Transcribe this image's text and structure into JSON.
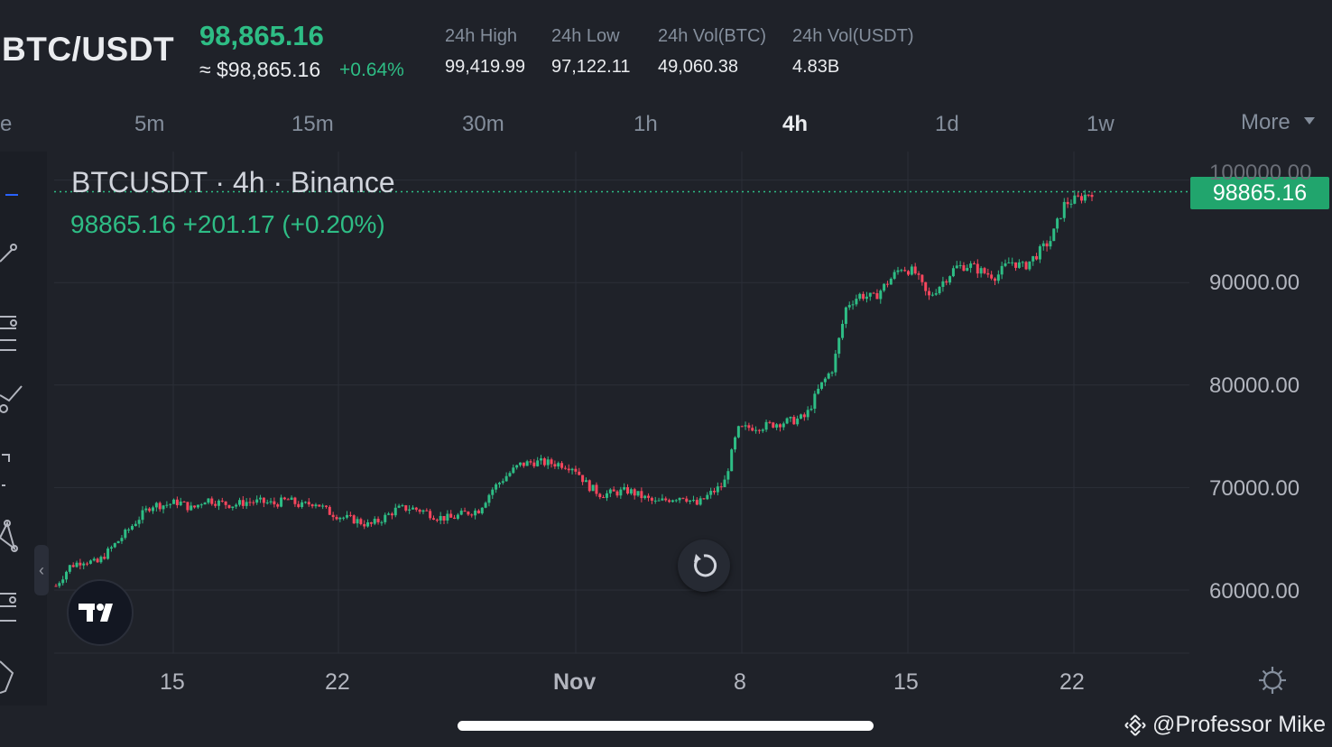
{
  "header": {
    "pair": "BTC/USDT",
    "last_price": "98,865.16",
    "approx_usd": "≈ $98,865.16",
    "change_pct": "+0.64%",
    "stats": [
      {
        "label": "24h High",
        "value": "99,419.99"
      },
      {
        "label": "24h Low",
        "value": "97,122.11"
      },
      {
        "label": "24h Vol(BTC)",
        "value": "49,060.38"
      },
      {
        "label": "24h Vol(USDT)",
        "value": "4.83B"
      }
    ]
  },
  "timeframes": {
    "items": [
      "e",
      "5m",
      "15m",
      "30m",
      "1h",
      "4h",
      "1d",
      "1w"
    ],
    "active": "4h",
    "more_label": "More"
  },
  "legend": {
    "title": "BTCUSDT · 4h · Binance",
    "values": "98865.16  +201.17 (+0.20%)"
  },
  "price_tag": "98865.16",
  "colors": {
    "up": "#2ebd85",
    "down": "#f6465d",
    "background": "#1f2229",
    "grid": "#2b2f38"
  },
  "icons": [
    "tradingview-logo-icon",
    "reset-chart-icon",
    "settings-gear-icon",
    "collapse-chevron-icon",
    "binance-logo-icon"
  ],
  "watermark": "@Professor Mike",
  "chart_data": {
    "type": "candlestick",
    "symbol": "BTCUSDT",
    "interval": "4h",
    "exchange": "Binance",
    "y_ticks": [
      "60000.00",
      "70000.00",
      "80000.00",
      "90000.00",
      "100000.00"
    ],
    "x_ticks": [
      "15",
      "22",
      "Nov",
      "8",
      "15",
      "22"
    ],
    "ylim": [
      54000,
      105000
    ],
    "last_price": 98865.16,
    "close_series": [
      60400,
      62300,
      62900,
      62600,
      64000,
      65400,
      66900,
      68300,
      68300,
      68600,
      67900,
      68900,
      68500,
      68300,
      68600,
      68600,
      68400,
      68800,
      68200,
      68600,
      67600,
      67100,
      66800,
      66300,
      67000,
      67900,
      68000,
      67700,
      67100,
      67000,
      67500,
      67800,
      69800,
      71100,
      72200,
      72500,
      72400,
      72300,
      72000,
      70200,
      69300,
      69500,
      69700,
      69100,
      68500,
      68900,
      69200,
      68300,
      69400,
      70300,
      75600,
      75900,
      76000,
      76300,
      76500,
      76900,
      79700,
      81700,
      87800,
      88800,
      88500,
      90000,
      91500,
      91000,
      88500,
      90000,
      91500,
      91700,
      91000,
      90600,
      92100,
      91500,
      92800,
      94200,
      97700,
      98200,
      98865
    ]
  }
}
